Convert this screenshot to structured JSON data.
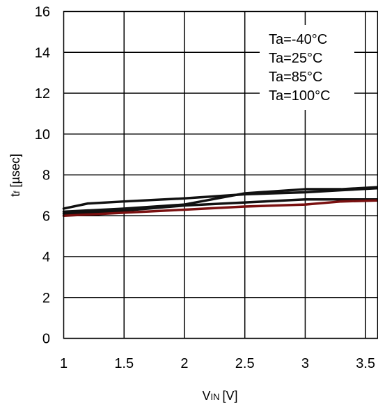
{
  "chart_data": {
    "type": "line",
    "title": "",
    "xlabel": "VIN [V]",
    "xlabel_parts": {
      "main": "V",
      "sub": "IN",
      "unit": "[V]"
    },
    "ylabel": "tf [µsec]",
    "ylabel_parts": {
      "main": "t",
      "sub": "f",
      "unit": "[µsec]"
    },
    "xlim": [
      1,
      3.6
    ],
    "ylim": [
      0,
      16
    ],
    "xticks": [
      1,
      1.5,
      2,
      2.5,
      3,
      3.5
    ],
    "xtick_labels": [
      "1",
      "1.5",
      "2",
      "2.5",
      "3",
      "3.5"
    ],
    "yticks": [
      0,
      2,
      4,
      6,
      8,
      10,
      12,
      14,
      16
    ],
    "ytick_labels": [
      "0",
      "2",
      "4",
      "6",
      "8",
      "10",
      "12",
      "14",
      "16"
    ],
    "grid": true,
    "legend_position": "top-right",
    "legend": [
      "Ta=-40°C",
      "Ta=25°C",
      "Ta=85°C",
      "Ta=100°C"
    ],
    "series": [
      {
        "name": "Ta=-40°C",
        "color": "#111111",
        "x": [
          1.0,
          1.2,
          1.5,
          2.0,
          2.5,
          3.0,
          3.3,
          3.6
        ],
        "y": [
          6.35,
          6.6,
          6.7,
          6.85,
          7.05,
          7.15,
          7.25,
          7.35
        ]
      },
      {
        "name": "Ta=25°C",
        "color": "#111111",
        "x": [
          1.0,
          1.5,
          2.0,
          2.5,
          3.0,
          3.3,
          3.6
        ],
        "y": [
          6.2,
          6.35,
          6.55,
          7.1,
          7.3,
          7.3,
          7.4
        ]
      },
      {
        "name": "Ta=85°C",
        "color": "#111111",
        "x": [
          1.0,
          1.5,
          2.0,
          2.5,
          3.0,
          3.3,
          3.6
        ],
        "y": [
          6.1,
          6.25,
          6.5,
          6.65,
          6.8,
          6.8,
          6.8
        ]
      },
      {
        "name": "Ta=100°C",
        "color": "#7a1010",
        "x": [
          1.0,
          1.5,
          2.0,
          2.5,
          3.0,
          3.3,
          3.6
        ],
        "y": [
          6.0,
          6.15,
          6.3,
          6.45,
          6.55,
          6.7,
          6.75
        ]
      }
    ]
  }
}
